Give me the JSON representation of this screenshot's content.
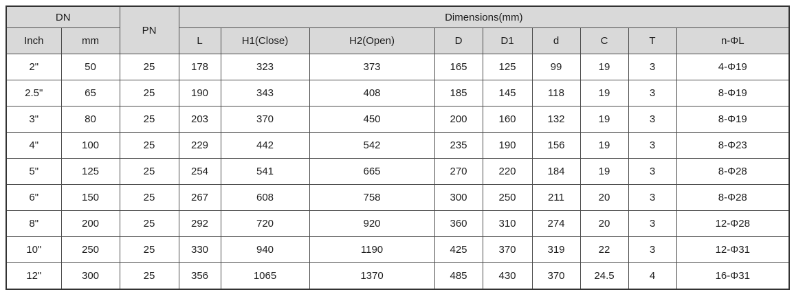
{
  "colors": {
    "header_bg": "#d9d9d9",
    "border_inner": "#4a4a4a",
    "border_outer": "#333333"
  },
  "table": {
    "header": {
      "dn": "DN",
      "pn": "PN",
      "dimensions": "Dimensions(mm)",
      "sub": [
        "Inch",
        "mm",
        "L",
        "H1(Close)",
        "H2(Open)",
        "D",
        "D1",
        "d",
        "C",
        "T",
        "n-ΦL"
      ]
    },
    "rows": [
      [
        "2\"",
        "50",
        "25",
        "178",
        "323",
        "373",
        "165",
        "125",
        "99",
        "19",
        "3",
        "4-Φ19"
      ],
      [
        "2.5\"",
        "65",
        "25",
        "190",
        "343",
        "408",
        "185",
        "145",
        "118",
        "19",
        "3",
        "8-Φ19"
      ],
      [
        "3\"",
        "80",
        "25",
        "203",
        "370",
        "450",
        "200",
        "160",
        "132",
        "19",
        "3",
        "8-Φ19"
      ],
      [
        "4\"",
        "100",
        "25",
        "229",
        "442",
        "542",
        "235",
        "190",
        "156",
        "19",
        "3",
        "8-Φ23"
      ],
      [
        "5\"",
        "125",
        "25",
        "254",
        "541",
        "665",
        "270",
        "220",
        "184",
        "19",
        "3",
        "8-Φ28"
      ],
      [
        "6\"",
        "150",
        "25",
        "267",
        "608",
        "758",
        "300",
        "250",
        "211",
        "20",
        "3",
        "8-Φ28"
      ],
      [
        "8\"",
        "200",
        "25",
        "292",
        "720",
        "920",
        "360",
        "310",
        "274",
        "20",
        "3",
        "12-Φ28"
      ],
      [
        "10\"",
        "250",
        "25",
        "330",
        "940",
        "1190",
        "425",
        "370",
        "319",
        "22",
        "3",
        "12-Φ31"
      ],
      [
        "12\"",
        "300",
        "25",
        "356",
        "1065",
        "1370",
        "485",
        "430",
        "370",
        "24.5",
        "4",
        "16-Φ31"
      ]
    ]
  }
}
